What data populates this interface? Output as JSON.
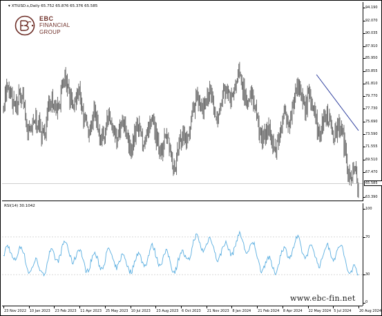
{
  "window": {
    "symbol_header": "XTIUSD.s,Daily  65.752 65.876 65.376 65.585",
    "rsi_header": "RSI(14) 30.1042"
  },
  "price_axis": {
    "labels": [
      "94.190",
      "92.070",
      "90.035",
      "87.910",
      "85.950",
      "83.855",
      "81.810",
      "79.770",
      "77.730",
      "75.690",
      "73.590",
      "71.555",
      "69.510",
      "67.470",
      "65.585",
      "63.390"
    ],
    "current_price": "65.585"
  },
  "rsi_axis": {
    "labels": [
      "100",
      "70",
      "30",
      "0"
    ]
  },
  "time_axis": {
    "labels": [
      "23 Nov 2022",
      "10 Jan 2023",
      "23 Feb 2023",
      "11 Apr 2023",
      "25 May 2023",
      "10 Jul 2023",
      "23 Aug 2023",
      "6 Oct 2023",
      "21 Nov 2023",
      "8 Jan 2024",
      "21 Feb 2024",
      "8 Apr 2024",
      "22 May 2024",
      "5 Jul 2024",
      "20 Aug 2024"
    ]
  },
  "logo": {
    "line1": "EBC",
    "line2": "FINANCIAL",
    "line3": "GROUP",
    "color": "#6d2d26"
  },
  "watermark": {
    "url": "www.ebc-fin.net"
  },
  "colors": {
    "candles": "#6b6b6b",
    "trendline": "#2e3f9e",
    "rsi_line": "#5aaee0",
    "rsi_levels": "#c0c0c0"
  },
  "chart_data": {
    "type": "line",
    "title": "XTIUSD.s,Daily",
    "x": [
      "23 Nov 2022",
      "10 Jan 2023",
      "23 Feb 2023",
      "11 Apr 2023",
      "25 May 2023",
      "10 Jul 2023",
      "23 Aug 2023",
      "6 Oct 2023",
      "21 Nov 2023",
      "8 Jan 2024",
      "21 Feb 2024",
      "8 Apr 2024",
      "22 May 2024",
      "5 Jul 2024",
      "20 Aug 2024"
    ],
    "series": [
      {
        "values": [
          78.5,
          76.0,
          77.5,
          80.5,
          72.0,
          75.5,
          71.0,
          73.0,
          78.0,
          82.0,
          76.0,
          73.5,
          81.0,
          73.5,
          66.0
        ]
      },
      {
        "values": [
          48,
          44,
          45,
          55,
          38,
          50,
          43,
          52,
          58,
          64,
          48,
          46,
          60,
          50,
          33
        ]
      }
    ],
    "price_range": [
      63.39,
      94.19
    ],
    "rsi_range": [
      0,
      100
    ],
    "rsi_levels": [
      70,
      30
    ],
    "last_price": 65.585,
    "last_rsi": 30.1042
  }
}
